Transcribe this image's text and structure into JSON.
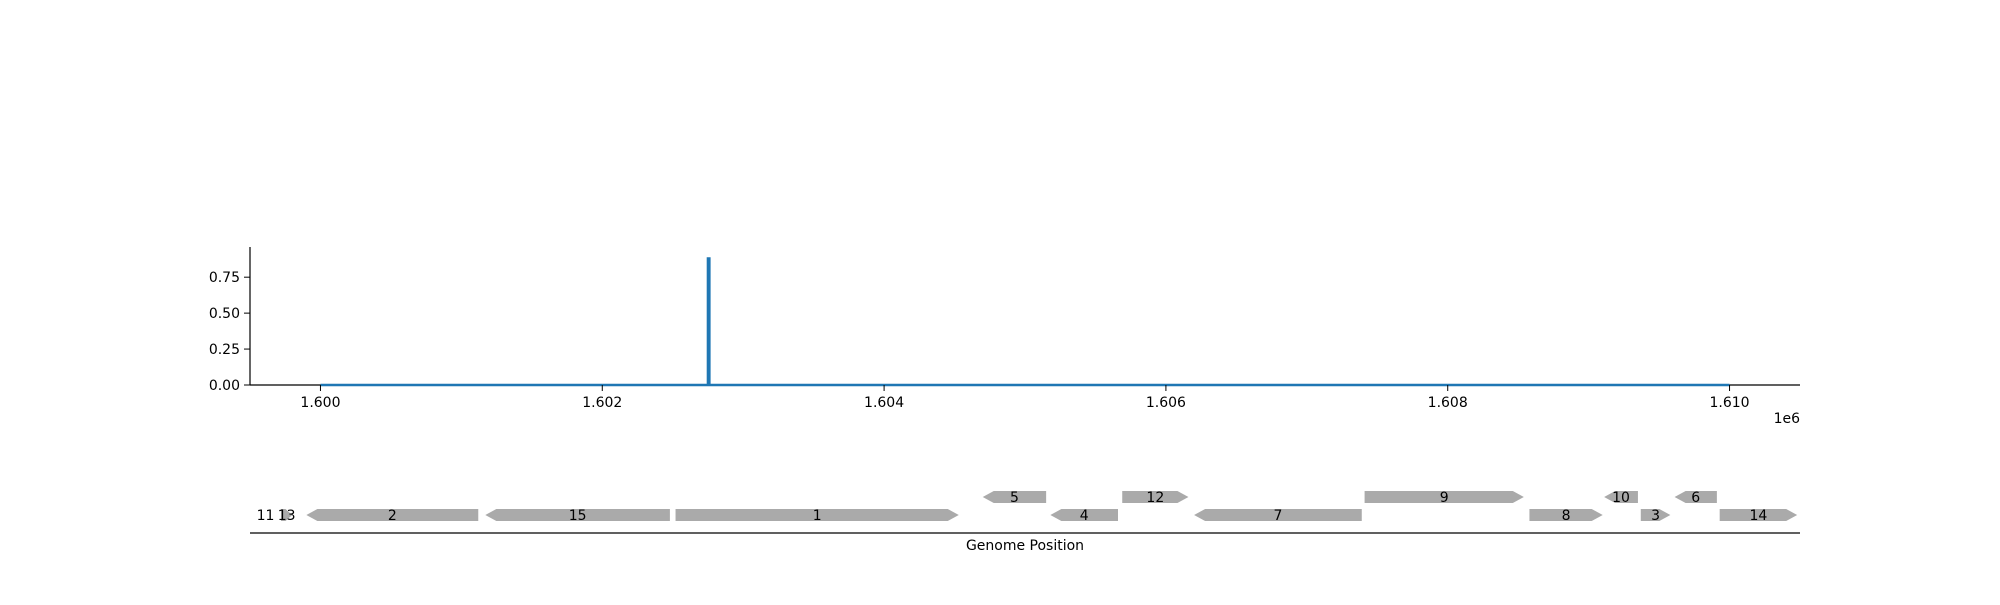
{
  "chart_data": [
    {
      "type": "line",
      "title": "",
      "xlabel": "",
      "ylabel": "",
      "x_offset_label": "1e6",
      "xlim": [
        1.5995,
        1.6105
      ],
      "ylim": [
        0,
        0.96
      ],
      "x_ticks": [
        1.6,
        1.602,
        1.604,
        1.606,
        1.608,
        1.61
      ],
      "x_tick_labels": [
        "1.600",
        "1.602",
        "1.604",
        "1.606",
        "1.608",
        "1.610"
      ],
      "y_ticks": [
        0.0,
        0.25,
        0.5,
        0.75
      ],
      "y_tick_labels": [
        "0.00",
        "0.25",
        "0.50",
        "0.75"
      ],
      "grid": false,
      "series": [
        {
          "color": "#1f77b4",
          "x": [
            1.6,
            1.60275,
            1.60275,
            1.60276,
            1.60276,
            1.61
          ],
          "y": [
            0,
            0,
            0.88,
            0.88,
            0,
            0
          ]
        }
      ]
    },
    {
      "type": "gene-track",
      "xlabel": "Genome Position",
      "gene_color": "#aaaaaa",
      "genes": [
        {
          "label": "11",
          "start": 1.5996,
          "end": 1.59962,
          "strand": 1,
          "row": 0
        },
        {
          "label": "13",
          "start": 1.59972,
          "end": 1.5998,
          "strand": 1,
          "row": 0
        },
        {
          "label": "2",
          "start": 1.5999,
          "end": 1.60112,
          "strand": -1,
          "row": 0
        },
        {
          "label": "15",
          "start": 1.60117,
          "end": 1.60248,
          "strand": -1,
          "row": 0
        },
        {
          "label": "1",
          "start": 1.60252,
          "end": 1.60453,
          "strand": 1,
          "row": 0
        },
        {
          "label": "5",
          "start": 1.6047,
          "end": 1.60515,
          "strand": -1,
          "row": 1
        },
        {
          "label": "4",
          "start": 1.60518,
          "end": 1.60566,
          "strand": -1,
          "row": 0
        },
        {
          "label": "12",
          "start": 1.60569,
          "end": 1.60616,
          "strand": 1,
          "row": 1
        },
        {
          "label": "7",
          "start": 1.6062,
          "end": 1.60739,
          "strand": -1,
          "row": 0
        },
        {
          "label": "9",
          "start": 1.60741,
          "end": 1.60854,
          "strand": 1,
          "row": 1
        },
        {
          "label": "8",
          "start": 1.60858,
          "end": 1.6091,
          "strand": 1,
          "row": 0
        },
        {
          "label": "10",
          "start": 1.60911,
          "end": 1.60935,
          "strand": -1,
          "row": 1
        },
        {
          "label": "3",
          "start": 1.60937,
          "end": 1.60958,
          "strand": 1,
          "row": 0
        },
        {
          "label": "6",
          "start": 1.60961,
          "end": 1.60991,
          "strand": -1,
          "row": 1
        },
        {
          "label": "14",
          "start": 1.60993,
          "end": 1.61048,
          "strand": 1,
          "row": 0
        }
      ]
    }
  ]
}
